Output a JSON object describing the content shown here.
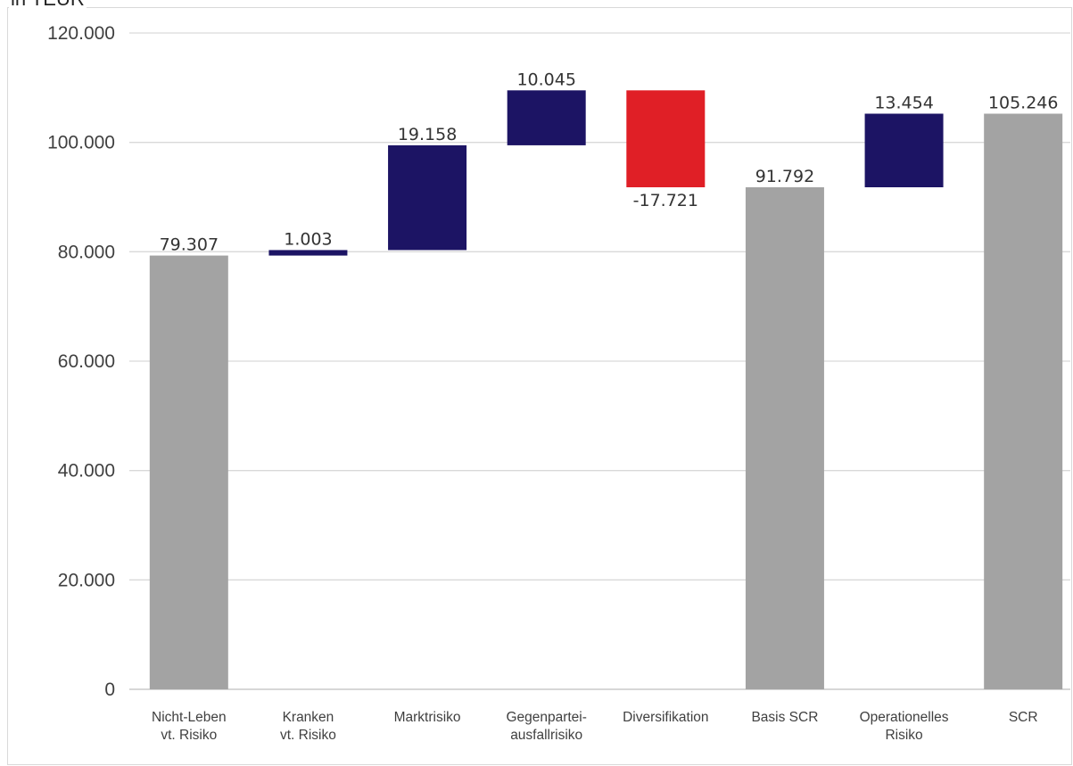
{
  "unit_label": "in TEUR",
  "chart_data": {
    "type": "bar",
    "subtype": "waterfall",
    "ylim": [
      0,
      120000
    ],
    "yticks": [
      "0",
      "20.000",
      "40.000",
      "60.000",
      "80.000",
      "100.000",
      "120.000"
    ],
    "ytick_values": [
      0,
      20000,
      40000,
      60000,
      80000,
      100000,
      120000
    ],
    "grid": true,
    "colors": {
      "total": "#a3a3a3",
      "increase": "#1c1464",
      "decrease": "#e01f26"
    },
    "bars": [
      {
        "category": [
          "Nicht-Leben",
          "vt. Risiko"
        ],
        "kind": "total",
        "start": 0,
        "end": 79307,
        "label": "79.307"
      },
      {
        "category": [
          "Kranken",
          "vt. Risiko"
        ],
        "kind": "increase",
        "start": 79307,
        "end": 80310,
        "label": "1.003"
      },
      {
        "category": [
          "Marktrisiko"
        ],
        "kind": "increase",
        "start": 80310,
        "end": 99468,
        "label": "19.158"
      },
      {
        "category": [
          "Gegenpartei-",
          "ausfallrisiko"
        ],
        "kind": "increase",
        "start": 99468,
        "end": 109513,
        "label": "10.045"
      },
      {
        "category": [
          "Diversifikation"
        ],
        "kind": "decrease",
        "start": 109513,
        "end": 91792,
        "label": "-17.721"
      },
      {
        "category": [
          "Basis SCR"
        ],
        "kind": "total",
        "start": 0,
        "end": 91792,
        "label": "91.792"
      },
      {
        "category": [
          "Operationelles",
          "Risiko"
        ],
        "kind": "increase",
        "start": 91792,
        "end": 105246,
        "label": "13.454"
      },
      {
        "category": [
          "SCR"
        ],
        "kind": "total",
        "start": 0,
        "end": 105246,
        "label": "105.246"
      }
    ]
  }
}
